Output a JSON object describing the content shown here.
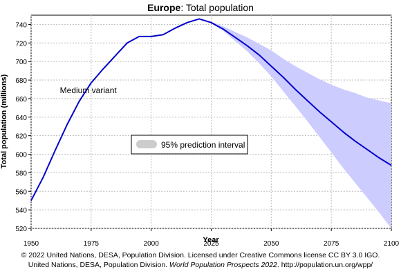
{
  "chart_data": {
    "type": "line",
    "title_region": "Europe",
    "title_rest": ": Total population",
    "xlabel": "Year",
    "ylabel": "Total population (millions)",
    "xlim": [
      1950,
      2100
    ],
    "ylim": [
      520,
      750
    ],
    "x_ticks": [
      1950,
      1975,
      2000,
      2025,
      2050,
      2075,
      2100
    ],
    "y_ticks": [
      520,
      540,
      560,
      580,
      600,
      620,
      640,
      660,
      680,
      700,
      720,
      740
    ],
    "grid": true,
    "series": [
      {
        "x": [
          1950,
          1955,
          1960,
          1965,
          1970,
          1975,
          1980,
          1985,
          1990,
          1995,
          2000,
          2005,
          2010,
          2015,
          2020,
          2025,
          2030,
          2035,
          2040,
          2045,
          2050,
          2055,
          2060,
          2065,
          2070,
          2075,
          2080,
          2085,
          2090,
          2095,
          2100
        ],
        "values": [
          550,
          575,
          604,
          632,
          657,
          677,
          692,
          706,
          720,
          727,
          727,
          729,
          736,
          742,
          746,
          742,
          735,
          726,
          717,
          707,
          695,
          683,
          670,
          658,
          646,
          635,
          624,
          614,
          605,
          596,
          588
        ],
        "color": "#0000cc"
      }
    ],
    "intervals": [
      {
        "name": "95% prediction interval",
        "color": "#ccccff",
        "x": [
          2020,
          2025,
          2030,
          2035,
          2040,
          2045,
          2050,
          2055,
          2060,
          2065,
          2070,
          2075,
          2080,
          2085,
          2090,
          2095,
          2100
        ],
        "lower": [
          746,
          741,
          733,
          722,
          711,
          698,
          684,
          668,
          652,
          636,
          619,
          602,
          585,
          569,
          553,
          537,
          520
        ],
        "upper": [
          746,
          743,
          738,
          732,
          726,
          719,
          712,
          703,
          695,
          688,
          681,
          675,
          670,
          666,
          661,
          658,
          655
        ]
      }
    ],
    "annotations": [
      {
        "text": "Medium variant",
        "x": 1962,
        "y": 666
      }
    ],
    "legend": {
      "label": "95% prediction interval",
      "position": "center"
    }
  },
  "footer": {
    "line1": "© 2022 United Nations, DESA, Population Division. Licensed under Creative Commons license CC BY 3.0 IGO.",
    "line2_prefix": "United Nations, DESA, Population Division. ",
    "line2_italic": "World Population Prospects 2022",
    "line2_suffix": ". http://population.un.org/wpp/"
  }
}
